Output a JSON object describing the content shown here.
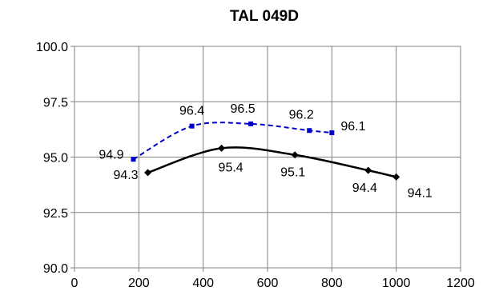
{
  "chart_data": {
    "type": "line",
    "title": "TAL 049D",
    "xlabel": "",
    "ylabel": "",
    "xlim": [
      0,
      1200
    ],
    "ylim": [
      90.0,
      100.0
    ],
    "x_ticks": [
      "0",
      "200",
      "400",
      "600",
      "800",
      "1000",
      "1200"
    ],
    "y_ticks": [
      "90.0",
      "92.5",
      "95.0",
      "97.5",
      "100.0"
    ],
    "grid": true,
    "legend": "none",
    "series": [
      {
        "color": "#0000cc",
        "line_style": "dashed",
        "marker": "square",
        "x": [
          183,
          365,
          548,
          730,
          800
        ],
        "y": [
          94.9,
          96.4,
          96.5,
          96.2,
          96.1
        ],
        "labels": [
          "94.9",
          "96.4",
          "96.5",
          "96.2",
          "96.1"
        ]
      },
      {
        "color": "#000000",
        "line_style": "solid",
        "marker": "diamond",
        "x": [
          228,
          457,
          685,
          913,
          1000
        ],
        "y": [
          94.3,
          95.4,
          95.1,
          94.4,
          94.1
        ],
        "labels": [
          "94.3",
          "95.4",
          "95.1",
          "94.4",
          "94.1"
        ]
      }
    ]
  }
}
